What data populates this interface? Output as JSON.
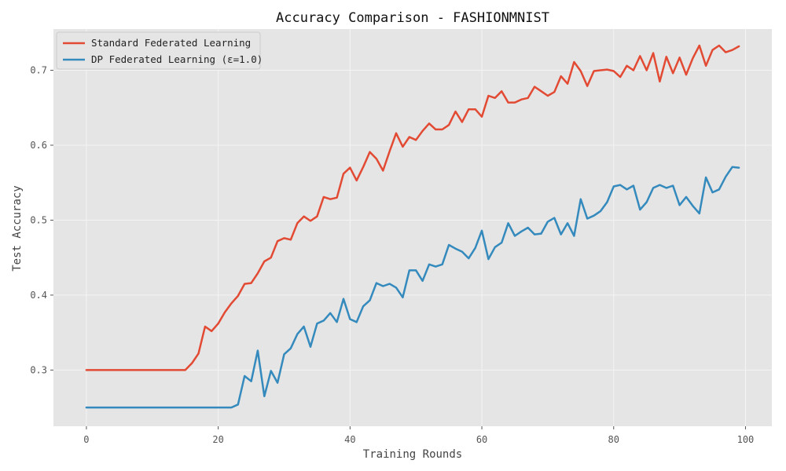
{
  "chart_data": {
    "type": "line",
    "title": "Accuracy Comparison - FASHIONMNIST",
    "xlabel": "Training Rounds",
    "ylabel": "Test Accuracy",
    "xlim": [
      -5,
      104
    ],
    "ylim": [
      0.225,
      0.755
    ],
    "xticks": [
      0,
      20,
      40,
      60,
      80,
      100
    ],
    "yticks": [
      0.3,
      0.4,
      0.5,
      0.6,
      0.7
    ],
    "xtick_labels": [
      "0",
      "20",
      "40",
      "60",
      "80",
      "100"
    ],
    "ytick_labels": [
      "0.3",
      "0.4",
      "0.5",
      "0.6",
      "0.7"
    ],
    "grid": true,
    "legend_position": "top-left",
    "background": "#e5e5e5",
    "series": [
      {
        "name": "Standard Federated Learning",
        "color": "#e24a33",
        "x": [
          0,
          1,
          2,
          3,
          4,
          5,
          6,
          7,
          8,
          9,
          10,
          11,
          12,
          13,
          14,
          15,
          16,
          17,
          18,
          19,
          20,
          21,
          22,
          23,
          24,
          25,
          26,
          27,
          28,
          29,
          30,
          31,
          32,
          33,
          34,
          35,
          36,
          37,
          38,
          39,
          40,
          41,
          42,
          43,
          44,
          45,
          46,
          47,
          48,
          49,
          50,
          51,
          52,
          53,
          54,
          55,
          56,
          57,
          58,
          59,
          60,
          61,
          62,
          63,
          64,
          65,
          66,
          67,
          68,
          69,
          70,
          71,
          72,
          73,
          74,
          75,
          76,
          77,
          78,
          79,
          80,
          81,
          82,
          83,
          84,
          85,
          86,
          87,
          88,
          89,
          90,
          91,
          92,
          93,
          94,
          95,
          96,
          97,
          98,
          99
        ],
        "values": [
          0.3,
          0.3,
          0.3,
          0.3,
          0.3,
          0.3,
          0.3,
          0.3,
          0.3,
          0.3,
          0.3,
          0.3,
          0.3,
          0.3,
          0.3,
          0.3,
          0.309,
          0.322,
          0.358,
          0.352,
          0.362,
          0.377,
          0.389,
          0.399,
          0.415,
          0.416,
          0.429,
          0.445,
          0.45,
          0.472,
          0.476,
          0.474,
          0.496,
          0.505,
          0.499,
          0.505,
          0.531,
          0.528,
          0.53,
          0.562,
          0.57,
          0.553,
          0.571,
          0.591,
          0.582,
          0.566,
          0.592,
          0.616,
          0.598,
          0.611,
          0.607,
          0.619,
          0.629,
          0.621,
          0.621,
          0.627,
          0.645,
          0.631,
          0.648,
          0.648,
          0.638,
          0.666,
          0.663,
          0.672,
          0.657,
          0.657,
          0.661,
          0.663,
          0.678,
          0.672,
          0.666,
          0.671,
          0.692,
          0.682,
          0.711,
          0.699,
          0.679,
          0.699,
          0.7,
          0.701,
          0.699,
          0.691,
          0.706,
          0.7,
          0.719,
          0.7,
          0.723,
          0.685,
          0.718,
          0.696,
          0.717,
          0.694,
          0.716,
          0.733,
          0.706,
          0.727,
          0.733,
          0.724,
          0.727,
          0.732
        ]
      },
      {
        "name": "DP Federated Learning (ε=1.0)",
        "color": "#348abd",
        "x": [
          0,
          1,
          2,
          3,
          4,
          5,
          6,
          7,
          8,
          9,
          10,
          11,
          12,
          13,
          14,
          15,
          16,
          17,
          18,
          19,
          20,
          21,
          22,
          23,
          24,
          25,
          26,
          27,
          28,
          29,
          30,
          31,
          32,
          33,
          34,
          35,
          36,
          37,
          38,
          39,
          40,
          41,
          42,
          43,
          44,
          45,
          46,
          47,
          48,
          49,
          50,
          51,
          52,
          53,
          54,
          55,
          56,
          57,
          58,
          59,
          60,
          61,
          62,
          63,
          64,
          65,
          66,
          67,
          68,
          69,
          70,
          71,
          72,
          73,
          74,
          75,
          76,
          77,
          78,
          79,
          80,
          81,
          82,
          83,
          84,
          85,
          86,
          87,
          88,
          89,
          90,
          91,
          92,
          93,
          94,
          95,
          96,
          97,
          98,
          99
        ],
        "values": [
          0.25,
          0.25,
          0.25,
          0.25,
          0.25,
          0.25,
          0.25,
          0.25,
          0.25,
          0.25,
          0.25,
          0.25,
          0.25,
          0.25,
          0.25,
          0.25,
          0.25,
          0.25,
          0.25,
          0.25,
          0.25,
          0.25,
          0.25,
          0.254,
          0.292,
          0.285,
          0.326,
          0.265,
          0.299,
          0.283,
          0.321,
          0.329,
          0.348,
          0.358,
          0.331,
          0.362,
          0.366,
          0.376,
          0.364,
          0.395,
          0.368,
          0.364,
          0.385,
          0.393,
          0.416,
          0.412,
          0.415,
          0.41,
          0.397,
          0.433,
          0.433,
          0.419,
          0.441,
          0.438,
          0.441,
          0.467,
          0.462,
          0.458,
          0.449,
          0.463,
          0.486,
          0.448,
          0.464,
          0.47,
          0.496,
          0.479,
          0.485,
          0.49,
          0.481,
          0.482,
          0.498,
          0.503,
          0.481,
          0.496,
          0.479,
          0.528,
          0.502,
          0.506,
          0.512,
          0.524,
          0.545,
          0.547,
          0.541,
          0.546,
          0.514,
          0.524,
          0.543,
          0.547,
          0.543,
          0.546,
          0.52,
          0.531,
          0.519,
          0.509,
          0.557,
          0.537,
          0.541,
          0.558,
          0.571,
          0.57
        ]
      }
    ]
  }
}
